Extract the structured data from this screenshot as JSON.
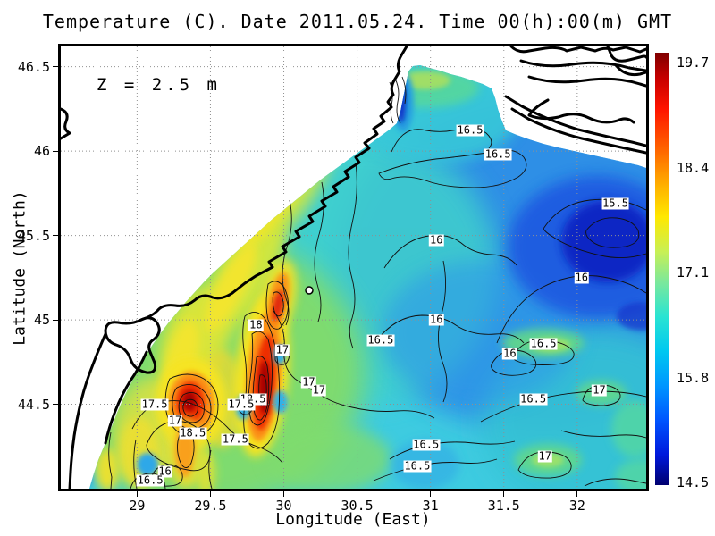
{
  "title": "Temperature (C). Date 2011.05.24. Time 00(h):00(m) GMT",
  "annotation": "Z = 2.5 m",
  "axes": {
    "x": {
      "label": "Longitude (East)",
      "ticks": [
        "29",
        "29.5",
        "30",
        "30.5",
        "31",
        "31.5",
        "32"
      ]
    },
    "y": {
      "label": "Latitude (North)",
      "ticks": [
        "46.5",
        "46",
        "45.5",
        "45",
        "44.5"
      ]
    }
  },
  "colorbar": {
    "ticks": [
      "19.7",
      "18.4",
      "17.1",
      "15.8",
      "14.5"
    ],
    "colormap": "jet"
  },
  "chart_data": {
    "type": "heatmap",
    "title": "Temperature (C). Date 2011.05.24. Time 00(h):00(m) GMT",
    "xlabel": "Longitude (East)",
    "ylabel": "Latitude (North)",
    "xlim": [
      28.48,
      32.47
    ],
    "ylim": [
      44.0,
      46.62
    ],
    "x_ticks": [
      29,
      29.5,
      30,
      30.5,
      31,
      31.5,
      32
    ],
    "y_ticks": [
      46.5,
      46,
      45.5,
      45,
      44.5
    ],
    "grid": true,
    "value_label": "Temperature (C)",
    "value_range": [
      14.5,
      19.7
    ],
    "colorbar_ticks": [
      19.7,
      18.4,
      17.1,
      15.8,
      14.5
    ],
    "colormap": "jet",
    "depth_label": "Z = 2.5 m",
    "date": "2011.05.24",
    "time": "00(h):00(m) GMT",
    "contour_interval": 0.5,
    "contour_levels": [
      15.5,
      16,
      16.5,
      17,
      17.5,
      18,
      18.5
    ],
    "marker": {
      "lon": 30.18,
      "lat": 45.17
    },
    "contour_labels": [
      {
        "value": "16.5",
        "lon": 31.27,
        "lat": 46.12
      },
      {
        "value": "16.5",
        "lon": 31.46,
        "lat": 45.98
      },
      {
        "value": "15.5",
        "lon": 32.26,
        "lat": 45.69
      },
      {
        "value": "16",
        "lon": 31.04,
        "lat": 45.47
      },
      {
        "value": "16",
        "lon": 32.03,
        "lat": 45.25
      },
      {
        "value": "16",
        "lon": 31.04,
        "lat": 45.0
      },
      {
        "value": "16.5",
        "lon": 30.66,
        "lat": 44.88
      },
      {
        "value": "16.5",
        "lon": 31.77,
        "lat": 44.86
      },
      {
        "value": "16",
        "lon": 31.54,
        "lat": 44.8
      },
      {
        "value": "17",
        "lon": 32.15,
        "lat": 44.58
      },
      {
        "value": "16.5",
        "lon": 31.7,
        "lat": 44.53
      },
      {
        "value": "17",
        "lon": 31.78,
        "lat": 44.19
      },
      {
        "value": "16.5",
        "lon": 30.97,
        "lat": 44.26
      },
      {
        "value": "16.5",
        "lon": 30.91,
        "lat": 44.13
      },
      {
        "value": "18",
        "lon": 29.81,
        "lat": 44.97
      },
      {
        "value": "17",
        "lon": 29.99,
        "lat": 44.82
      },
      {
        "value": "17",
        "lon": 30.17,
        "lat": 44.63
      },
      {
        "value": "17",
        "lon": 30.24,
        "lat": 44.58
      },
      {
        "value": "18.5",
        "lon": 29.79,
        "lat": 44.53
      },
      {
        "value": "17.5",
        "lon": 29.71,
        "lat": 44.5
      },
      {
        "value": "17.5",
        "lon": 29.12,
        "lat": 44.5
      },
      {
        "value": "17",
        "lon": 29.26,
        "lat": 44.4
      },
      {
        "value": "18.5",
        "lon": 29.38,
        "lat": 44.33
      },
      {
        "value": "17.5",
        "lon": 29.67,
        "lat": 44.29
      },
      {
        "value": "16",
        "lon": 29.19,
        "lat": 44.1
      },
      {
        "value": "16.5",
        "lon": 29.09,
        "lat": 44.05
      }
    ]
  }
}
